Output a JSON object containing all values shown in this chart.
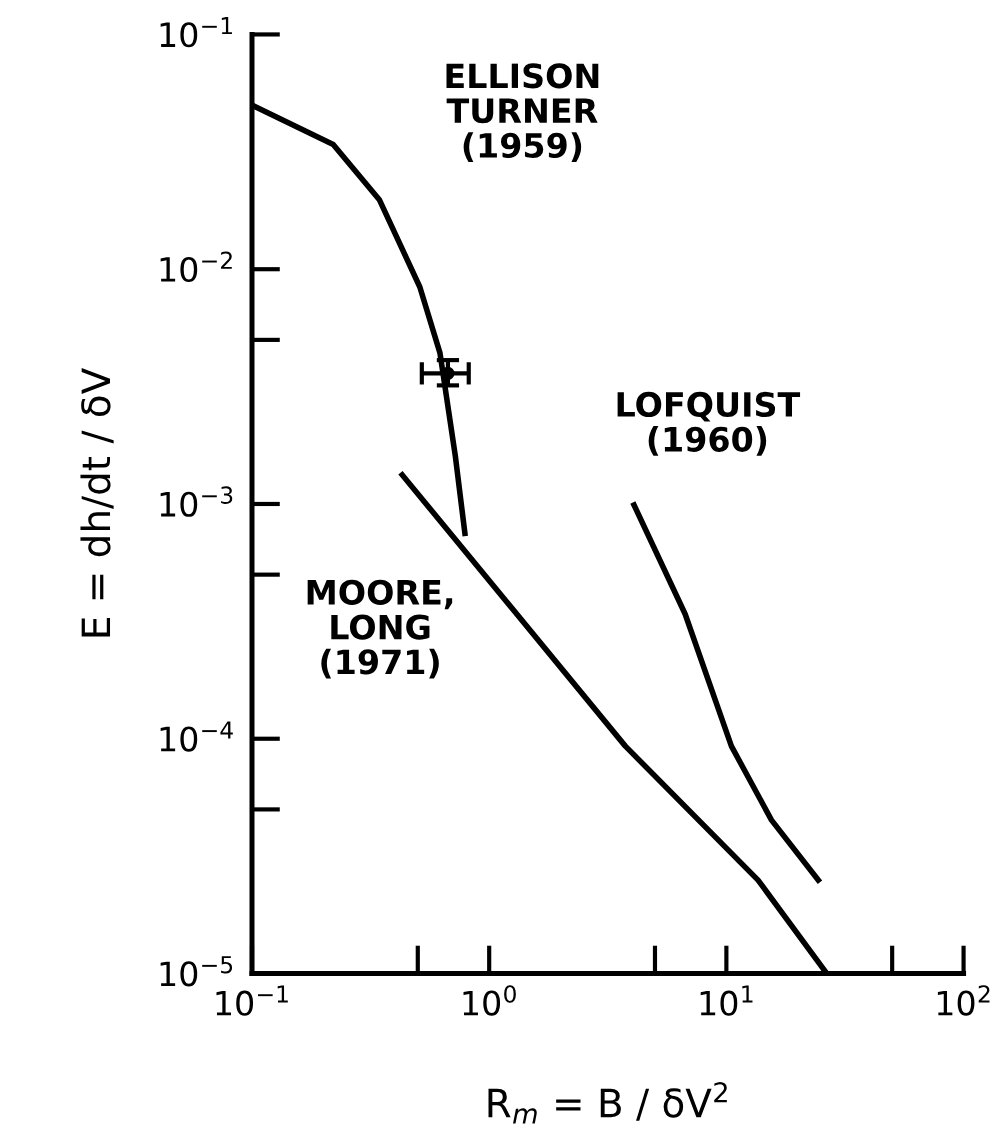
{
  "chart_data": {
    "type": "line",
    "xlabel": "R$_{m}$ = B / δV$^{2}$",
    "ylabel": "E = dh/dt / δV",
    "log": "xy",
    "grid": false,
    "legend": false,
    "marker": "none",
    "line_style": "solid",
    "xlim": [
      0.1,
      100
    ],
    "ylim": [
      1e-05,
      0.1
    ],
    "xticks": [
      {
        "value": 0.1,
        "label": "10$^{−1}$"
      },
      {
        "value": 0.5,
        "label": null
      },
      {
        "value": 1,
        "label": "10$^{0}$"
      },
      {
        "value": 5,
        "label": null
      },
      {
        "value": 10,
        "label": "10$^{1}$"
      },
      {
        "value": 50,
        "label": null
      },
      {
        "value": 100,
        "label": "10$^{2}$"
      }
    ],
    "yticks": [
      {
        "value": 1e-05,
        "label": "10$^{−5}$"
      },
      {
        "value": 5e-05,
        "label": null
      },
      {
        "value": 0.0001,
        "label": "10$^{−4}$"
      },
      {
        "value": 0.0005,
        "label": null
      },
      {
        "value": 0.001,
        "label": "10$^{−3}$"
      },
      {
        "value": 0.005,
        "label": null
      },
      {
        "value": 0.01,
        "label": "10$^{−2}$"
      },
      {
        "value": 0.1,
        "label": "10$^{−1}$"
      }
    ],
    "series": [
      {
        "name": "ELLISON\nTURNER\n(1959)",
        "color": "#000000",
        "x": [
          0.1,
          0.22,
          0.345,
          0.51,
          0.62,
          0.72,
          0.79
        ],
        "values": [
          0.05,
          0.034,
          0.0197,
          0.0084,
          0.0044,
          0.0016,
          0.00075
        ]
      },
      {
        "type": "scatter",
        "marker": "circle",
        "color": "#000000",
        "x": [
          0.67
        ],
        "values": [
          0.0036
        ],
        "errors": [
          [
            0.0032,
            0.0041
          ]
        ],
        "xerrors": [
          [
            0.52,
            0.82
          ]
        ]
      },
      {
        "name": "MOORE,\nLONG\n(1971)",
        "color": "#000000",
        "x": [
          0.43,
          3.75,
          13.6,
          26.5
        ],
        "values": [
          0.00133,
          9.3e-05,
          2.5e-05,
          1e-05
        ]
      },
      {
        "name": "LOFQUIST\n(1960)",
        "color": "#000000",
        "x": [
          4.08,
          6.7,
          10.5,
          15.5,
          24.4
        ],
        "values": [
          0.00099,
          0.00034,
          9.3e-05,
          4.5e-05,
          2.5e-05
        ]
      }
    ]
  }
}
